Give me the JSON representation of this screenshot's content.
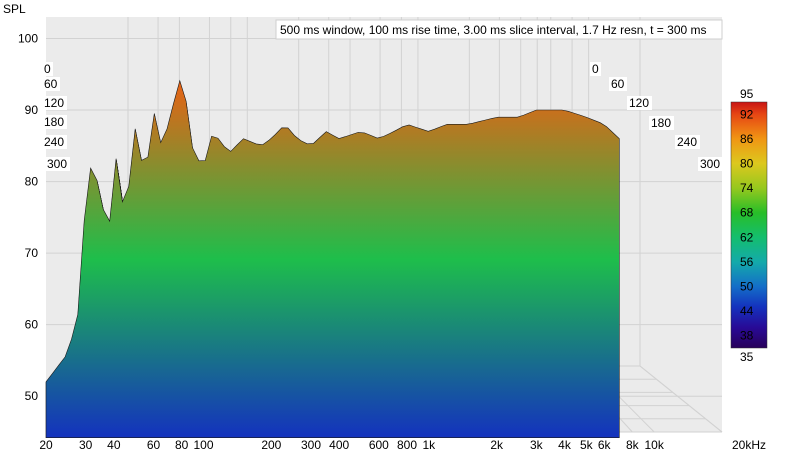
{
  "chart_data": {
    "type": "waterfall",
    "title": "500 ms window, 100 ms rise time, 3.00 ms slice interval, 1.7 Hz resn, t = 300 ms",
    "ylabel": "SPL",
    "xlabel_unit": "kHz",
    "x_scale": "log",
    "xlim": [
      20,
      20000
    ],
    "ylim": [
      45,
      103
    ],
    "x_ticks": [
      {
        "v": 20,
        "label": "20"
      },
      {
        "v": 30,
        "label": "30"
      },
      {
        "v": 40,
        "label": "40"
      },
      {
        "v": 60,
        "label": "60"
      },
      {
        "v": 80,
        "label": "80"
      },
      {
        "v": 100,
        "label": "100"
      },
      {
        "v": 200,
        "label": "200"
      },
      {
        "v": 300,
        "label": "300"
      },
      {
        "v": 400,
        "label": "400"
      },
      {
        "v": 600,
        "label": "600"
      },
      {
        "v": 800,
        "label": "800"
      },
      {
        "v": 1000,
        "label": "1k"
      },
      {
        "v": 2000,
        "label": "2k"
      },
      {
        "v": 3000,
        "label": "3k"
      },
      {
        "v": 4000,
        "label": "4k"
      },
      {
        "v": 5000,
        "label": "5k"
      },
      {
        "v": 6000,
        "label": "6k"
      },
      {
        "v": 8000,
        "label": "8k"
      },
      {
        "v": 10000,
        "label": "10k"
      },
      {
        "v": 20000,
        "label": "20kHz"
      }
    ],
    "y_ticks": [
      50,
      60,
      70,
      80,
      90,
      100
    ],
    "time_ticks_ms": [
      0,
      60,
      120,
      180,
      240,
      300
    ],
    "time_ticks_left": [
      "0",
      "60",
      "120",
      "180",
      "240",
      "300"
    ],
    "time_ticks_right": [
      "0",
      "60",
      "120",
      "180",
      "240",
      "300"
    ],
    "t_max_ms": 300,
    "slice_interval_ms": 3.0,
    "colorbar": {
      "min": 35,
      "max": 95,
      "ticks": [
        92,
        86,
        80,
        74,
        68,
        62,
        56,
        50,
        44,
        38
      ],
      "min_label": "35",
      "max_label": "95"
    },
    "response_t0": [
      [
        20,
        52
      ],
      [
        25,
        56
      ],
      [
        28,
        62
      ],
      [
        30,
        78
      ],
      [
        32,
        83
      ],
      [
        35,
        78
      ],
      [
        38,
        72
      ],
      [
        40,
        86
      ],
      [
        42,
        80
      ],
      [
        45,
        75
      ],
      [
        50,
        88
      ],
      [
        55,
        80
      ],
      [
        60,
        90
      ],
      [
        65,
        85
      ],
      [
        70,
        88
      ],
      [
        75,
        92
      ],
      [
        80,
        95
      ],
      [
        85,
        90
      ],
      [
        90,
        84
      ],
      [
        100,
        82
      ],
      [
        110,
        87
      ],
      [
        130,
        84
      ],
      [
        150,
        86
      ],
      [
        180,
        85
      ],
      [
        200,
        86
      ],
      [
        230,
        88
      ],
      [
        260,
        86
      ],
      [
        300,
        85
      ],
      [
        350,
        87
      ],
      [
        400,
        86
      ],
      [
        500,
        87
      ],
      [
        600,
        86
      ],
      [
        700,
        87
      ],
      [
        800,
        88
      ],
      [
        1000,
        87
      ],
      [
        1200,
        88
      ],
      [
        1500,
        88
      ],
      [
        2000,
        89
      ],
      [
        2500,
        89
      ],
      [
        3000,
        90
      ],
      [
        4000,
        90
      ],
      [
        5000,
        89
      ],
      [
        6000,
        88
      ],
      [
        7000,
        86
      ]
    ],
    "hf_cutoff_hz": 7000
  },
  "colors": {
    "background": "#ffffff",
    "plot_background": "#ebebeb",
    "grid": "#d2d2d2"
  }
}
